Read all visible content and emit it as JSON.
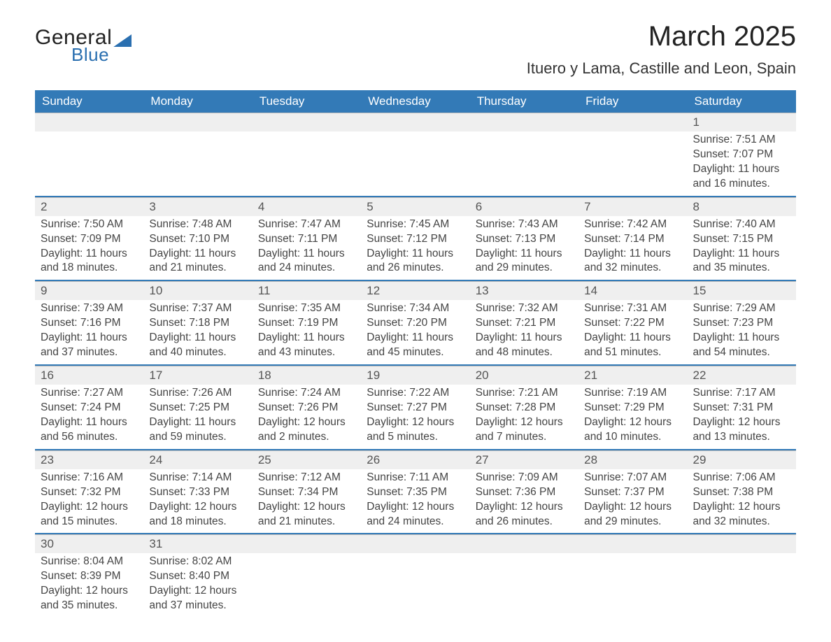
{
  "brand": {
    "line1": "General",
    "line2": "Blue",
    "accent_color": "#2a6fb0"
  },
  "title": "March 2025",
  "location": "Ituero y Lama, Castille and Leon, Spain",
  "colors": {
    "header_bg": "#337ab7",
    "header_text": "#ffffff",
    "daynum_bg": "#efefef",
    "text": "#444444",
    "row_divider": "#337ab7"
  },
  "typography": {
    "title_fontsize_pt": 30,
    "location_fontsize_pt": 17,
    "header_fontsize_pt": 13,
    "body_fontsize_pt": 12
  },
  "columns": [
    "Sunday",
    "Monday",
    "Tuesday",
    "Wednesday",
    "Thursday",
    "Friday",
    "Saturday"
  ],
  "weeks": [
    [
      null,
      null,
      null,
      null,
      null,
      null,
      {
        "n": "1",
        "sr": "Sunrise: 7:51 AM",
        "ss": "Sunset: 7:07 PM",
        "d1": "Daylight: 11 hours",
        "d2": "and 16 minutes."
      }
    ],
    [
      {
        "n": "2",
        "sr": "Sunrise: 7:50 AM",
        "ss": "Sunset: 7:09 PM",
        "d1": "Daylight: 11 hours",
        "d2": "and 18 minutes."
      },
      {
        "n": "3",
        "sr": "Sunrise: 7:48 AM",
        "ss": "Sunset: 7:10 PM",
        "d1": "Daylight: 11 hours",
        "d2": "and 21 minutes."
      },
      {
        "n": "4",
        "sr": "Sunrise: 7:47 AM",
        "ss": "Sunset: 7:11 PM",
        "d1": "Daylight: 11 hours",
        "d2": "and 24 minutes."
      },
      {
        "n": "5",
        "sr": "Sunrise: 7:45 AM",
        "ss": "Sunset: 7:12 PM",
        "d1": "Daylight: 11 hours",
        "d2": "and 26 minutes."
      },
      {
        "n": "6",
        "sr": "Sunrise: 7:43 AM",
        "ss": "Sunset: 7:13 PM",
        "d1": "Daylight: 11 hours",
        "d2": "and 29 minutes."
      },
      {
        "n": "7",
        "sr": "Sunrise: 7:42 AM",
        "ss": "Sunset: 7:14 PM",
        "d1": "Daylight: 11 hours",
        "d2": "and 32 minutes."
      },
      {
        "n": "8",
        "sr": "Sunrise: 7:40 AM",
        "ss": "Sunset: 7:15 PM",
        "d1": "Daylight: 11 hours",
        "d2": "and 35 minutes."
      }
    ],
    [
      {
        "n": "9",
        "sr": "Sunrise: 7:39 AM",
        "ss": "Sunset: 7:16 PM",
        "d1": "Daylight: 11 hours",
        "d2": "and 37 minutes."
      },
      {
        "n": "10",
        "sr": "Sunrise: 7:37 AM",
        "ss": "Sunset: 7:18 PM",
        "d1": "Daylight: 11 hours",
        "d2": "and 40 minutes."
      },
      {
        "n": "11",
        "sr": "Sunrise: 7:35 AM",
        "ss": "Sunset: 7:19 PM",
        "d1": "Daylight: 11 hours",
        "d2": "and 43 minutes."
      },
      {
        "n": "12",
        "sr": "Sunrise: 7:34 AM",
        "ss": "Sunset: 7:20 PM",
        "d1": "Daylight: 11 hours",
        "d2": "and 45 minutes."
      },
      {
        "n": "13",
        "sr": "Sunrise: 7:32 AM",
        "ss": "Sunset: 7:21 PM",
        "d1": "Daylight: 11 hours",
        "d2": "and 48 minutes."
      },
      {
        "n": "14",
        "sr": "Sunrise: 7:31 AM",
        "ss": "Sunset: 7:22 PM",
        "d1": "Daylight: 11 hours",
        "d2": "and 51 minutes."
      },
      {
        "n": "15",
        "sr": "Sunrise: 7:29 AM",
        "ss": "Sunset: 7:23 PM",
        "d1": "Daylight: 11 hours",
        "d2": "and 54 minutes."
      }
    ],
    [
      {
        "n": "16",
        "sr": "Sunrise: 7:27 AM",
        "ss": "Sunset: 7:24 PM",
        "d1": "Daylight: 11 hours",
        "d2": "and 56 minutes."
      },
      {
        "n": "17",
        "sr": "Sunrise: 7:26 AM",
        "ss": "Sunset: 7:25 PM",
        "d1": "Daylight: 11 hours",
        "d2": "and 59 minutes."
      },
      {
        "n": "18",
        "sr": "Sunrise: 7:24 AM",
        "ss": "Sunset: 7:26 PM",
        "d1": "Daylight: 12 hours",
        "d2": "and 2 minutes."
      },
      {
        "n": "19",
        "sr": "Sunrise: 7:22 AM",
        "ss": "Sunset: 7:27 PM",
        "d1": "Daylight: 12 hours",
        "d2": "and 5 minutes."
      },
      {
        "n": "20",
        "sr": "Sunrise: 7:21 AM",
        "ss": "Sunset: 7:28 PM",
        "d1": "Daylight: 12 hours",
        "d2": "and 7 minutes."
      },
      {
        "n": "21",
        "sr": "Sunrise: 7:19 AM",
        "ss": "Sunset: 7:29 PM",
        "d1": "Daylight: 12 hours",
        "d2": "and 10 minutes."
      },
      {
        "n": "22",
        "sr": "Sunrise: 7:17 AM",
        "ss": "Sunset: 7:31 PM",
        "d1": "Daylight: 12 hours",
        "d2": "and 13 minutes."
      }
    ],
    [
      {
        "n": "23",
        "sr": "Sunrise: 7:16 AM",
        "ss": "Sunset: 7:32 PM",
        "d1": "Daylight: 12 hours",
        "d2": "and 15 minutes."
      },
      {
        "n": "24",
        "sr": "Sunrise: 7:14 AM",
        "ss": "Sunset: 7:33 PM",
        "d1": "Daylight: 12 hours",
        "d2": "and 18 minutes."
      },
      {
        "n": "25",
        "sr": "Sunrise: 7:12 AM",
        "ss": "Sunset: 7:34 PM",
        "d1": "Daylight: 12 hours",
        "d2": "and 21 minutes."
      },
      {
        "n": "26",
        "sr": "Sunrise: 7:11 AM",
        "ss": "Sunset: 7:35 PM",
        "d1": "Daylight: 12 hours",
        "d2": "and 24 minutes."
      },
      {
        "n": "27",
        "sr": "Sunrise: 7:09 AM",
        "ss": "Sunset: 7:36 PM",
        "d1": "Daylight: 12 hours",
        "d2": "and 26 minutes."
      },
      {
        "n": "28",
        "sr": "Sunrise: 7:07 AM",
        "ss": "Sunset: 7:37 PM",
        "d1": "Daylight: 12 hours",
        "d2": "and 29 minutes."
      },
      {
        "n": "29",
        "sr": "Sunrise: 7:06 AM",
        "ss": "Sunset: 7:38 PM",
        "d1": "Daylight: 12 hours",
        "d2": "and 32 minutes."
      }
    ],
    [
      {
        "n": "30",
        "sr": "Sunrise: 8:04 AM",
        "ss": "Sunset: 8:39 PM",
        "d1": "Daylight: 12 hours",
        "d2": "and 35 minutes."
      },
      {
        "n": "31",
        "sr": "Sunrise: 8:02 AM",
        "ss": "Sunset: 8:40 PM",
        "d1": "Daylight: 12 hours",
        "d2": "and 37 minutes."
      },
      null,
      null,
      null,
      null,
      null
    ]
  ]
}
